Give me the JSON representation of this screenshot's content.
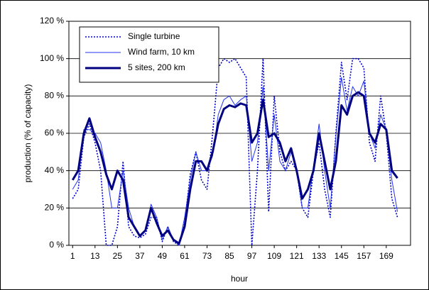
{
  "chart_data": {
    "type": "line",
    "x_label": "hour",
    "y_label": "production (% of capacity)",
    "x": [
      1,
      4,
      7,
      10,
      13,
      16,
      19,
      22,
      25,
      28,
      31,
      34,
      37,
      40,
      43,
      46,
      49,
      52,
      55,
      58,
      61,
      64,
      67,
      70,
      73,
      76,
      79,
      82,
      85,
      88,
      91,
      94,
      97,
      100,
      103,
      106,
      109,
      112,
      115,
      118,
      121,
      124,
      127,
      130,
      133,
      136,
      139,
      142,
      145,
      148,
      151,
      154,
      157,
      160,
      163,
      166,
      169,
      172,
      175
    ],
    "series": [
      {
        "name": "Single turbine",
        "color": "#0000cc",
        "line_width": 1.6,
        "dashed": true,
        "values": [
          25,
          30,
          58,
          65,
          55,
          40,
          0,
          0,
          10,
          45,
          10,
          5,
          4,
          6,
          15,
          15,
          2,
          10,
          2,
          0,
          12,
          38,
          50,
          35,
          30,
          60,
          95,
          100,
          98,
          100,
          95,
          90,
          0,
          40,
          100,
          18,
          80,
          50,
          40,
          45,
          40,
          20,
          15,
          40,
          55,
          30,
          15,
          60,
          98,
          78,
          100,
          100,
          95,
          55,
          45,
          80,
          60,
          25,
          15
        ]
      },
      {
        "name": "Wind farm, 10 km",
        "color": "#2233ee",
        "line_width": 1,
        "dashed": false,
        "values": [
          30,
          35,
          62,
          62,
          60,
          55,
          40,
          20,
          20,
          40,
          20,
          10,
          5,
          8,
          22,
          15,
          3,
          10,
          3,
          0,
          15,
          35,
          50,
          40,
          40,
          48,
          70,
          78,
          80,
          75,
          78,
          80,
          45,
          55,
          85,
          40,
          70,
          45,
          40,
          50,
          40,
          20,
          20,
          42,
          65,
          40,
          20,
          58,
          90,
          72,
          85,
          80,
          88,
          60,
          52,
          70,
          62,
          35,
          18
        ]
      },
      {
        "name": "5 sites, 200 km",
        "color": "#000080",
        "line_width": 3,
        "dashed": false,
        "values": [
          35,
          40,
          60,
          68,
          58,
          50,
          38,
          30,
          40,
          35,
          15,
          10,
          5,
          8,
          20,
          12,
          5,
          8,
          3,
          1,
          10,
          30,
          45,
          45,
          40,
          50,
          65,
          73,
          75,
          74,
          76,
          75,
          55,
          60,
          78,
          58,
          60,
          55,
          45,
          52,
          40,
          25,
          30,
          40,
          60,
          45,
          30,
          45,
          75,
          70,
          80,
          82,
          80,
          60,
          55,
          65,
          62,
          40,
          36
        ]
      }
    ],
    "xlim": [
      -1,
      182
    ],
    "xticks": [
      1,
      13,
      25,
      37,
      49,
      61,
      73,
      85,
      97,
      109,
      121,
      133,
      145,
      157,
      169
    ],
    "ylim": [
      0,
      120
    ],
    "yticks": [
      {
        "value": 0,
        "label": "0 %"
      },
      {
        "value": 20,
        "label": "20 %"
      },
      {
        "value": 40,
        "label": "40 %"
      },
      {
        "value": 60,
        "label": "60 %"
      },
      {
        "value": 80,
        "label": "80 %"
      },
      {
        "value": 100,
        "label": "100 %"
      },
      {
        "value": 120,
        "label": "120 %"
      }
    ],
    "grid": true,
    "legend": "upper left"
  }
}
